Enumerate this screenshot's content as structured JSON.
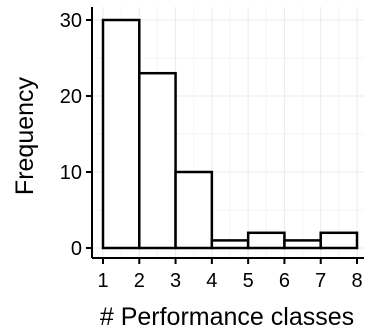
{
  "chart_data": {
    "type": "bar",
    "subtype": "histogram",
    "title": "",
    "xlabel": "# Performance classes",
    "ylabel": "Frequency",
    "x_bins": [
      {
        "from": 1,
        "to": 2,
        "value": 30
      },
      {
        "from": 2,
        "to": 3,
        "value": 23
      },
      {
        "from": 3,
        "to": 4,
        "value": 10
      },
      {
        "from": 4,
        "to": 5,
        "value": 1
      },
      {
        "from": 5,
        "to": 6,
        "value": 2
      },
      {
        "from": 6,
        "to": 7,
        "value": 1
      },
      {
        "from": 7,
        "to": 8,
        "value": 2
      }
    ],
    "x_ticks": [
      "1",
      "2",
      "3",
      "4",
      "5",
      "6",
      "7",
      "8"
    ],
    "y_ticks": [
      "0",
      "10",
      "20",
      "30"
    ],
    "xlim": [
      1,
      8
    ],
    "ylim": [
      0,
      30
    ],
    "grid": true,
    "legend": "none",
    "colors": {
      "bar_fill": "#ffffff",
      "bar_stroke": "#000000",
      "grid_major": "#ebebeb",
      "grid_minor": "#f5f5f5",
      "axis": "#000000"
    }
  }
}
